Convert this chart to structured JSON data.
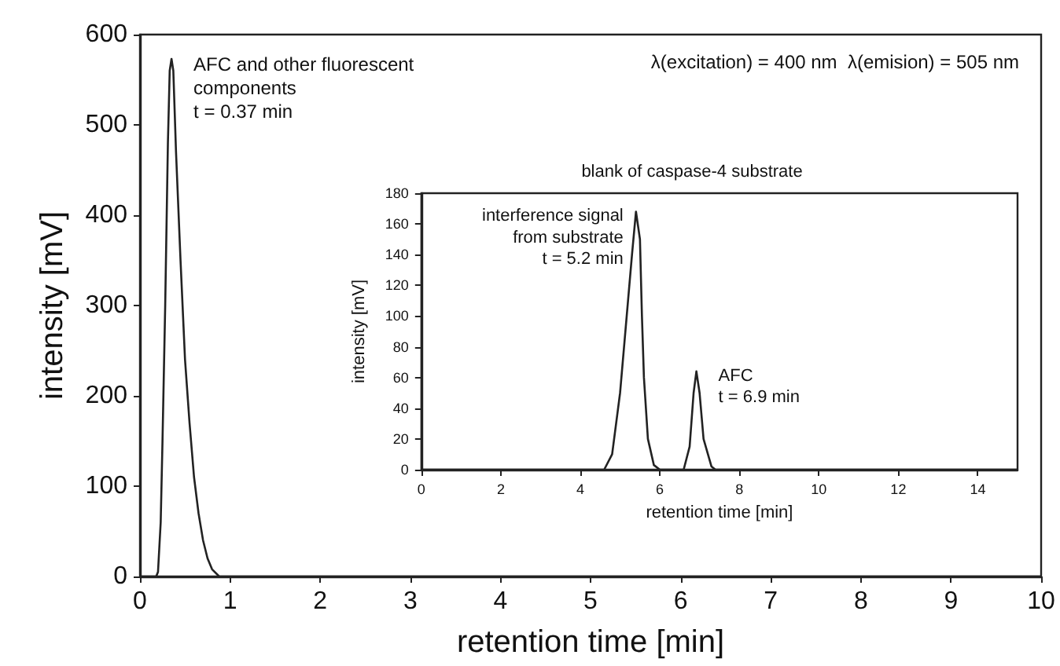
{
  "chart_data": [
    {
      "type": "line",
      "xlabel": "retention time [min]",
      "ylabel": "intensity [mV]",
      "xlim": [
        0,
        10
      ],
      "ylim": [
        0,
        600
      ],
      "xticks": [
        0,
        1,
        2,
        3,
        4,
        5,
        6,
        7,
        8,
        9,
        10
      ],
      "yticks": [
        0,
        100,
        200,
        300,
        400,
        500,
        600
      ],
      "grid": false,
      "marker": "none",
      "line_style": "solid",
      "series": [
        {
          "color": "#222222",
          "x": [
            0,
            0.18,
            0.2,
            0.23,
            0.25,
            0.28,
            0.31,
            0.33,
            0.35,
            0.37,
            0.4,
            0.45,
            0.5,
            0.55,
            0.6,
            0.65,
            0.7,
            0.75,
            0.8,
            0.88,
            10
          ],
          "values": [
            0,
            0,
            5,
            60,
            150,
            300,
            480,
            560,
            573,
            560,
            470,
            350,
            240,
            170,
            110,
            70,
            40,
            20,
            8,
            0,
            0
          ]
        }
      ],
      "annotations": [
        {
          "text": "AFC and other fluorescent\ncomponents\nt = 0.37 min",
          "x": 0.35,
          "y": 573
        },
        "λ(excitation) = 400 nm  λ(emision) = 505 nm"
      ]
    },
    {
      "type": "line",
      "title": "blank of caspase-4 substrate",
      "xlabel": "retention time [min]",
      "ylabel": "intensity [mV]",
      "xlim": [
        0,
        15
      ],
      "ylim": [
        0,
        180
      ],
      "xticks": [
        0,
        2,
        4,
        6,
        8,
        10,
        12,
        14
      ],
      "yticks": [
        0,
        20,
        40,
        60,
        80,
        100,
        120,
        140,
        160,
        180
      ],
      "grid": false,
      "marker": "none",
      "line_style": "solid",
      "series": [
        {
          "color": "#222222",
          "x": [
            0,
            4.6,
            4.8,
            5.0,
            5.2,
            5.3,
            5.4,
            5.5,
            5.55,
            5.6,
            5.7,
            5.85,
            6.0,
            6.6,
            6.75,
            6.85,
            6.92,
            7.0,
            7.1,
            7.3,
            7.4,
            15
          ],
          "values": [
            0,
            0,
            10,
            50,
            110,
            140,
            168,
            150,
            100,
            60,
            20,
            3,
            0,
            0,
            15,
            50,
            64,
            50,
            20,
            2,
            0,
            0
          ]
        }
      ],
      "annotations": [
        {
          "text": "interference signal\nfrom substrate\nt = 5.2 min",
          "x": 5.4,
          "y": 168
        },
        {
          "text": "AFC\nt = 6.9 min",
          "x": 6.92,
          "y": 64
        }
      ]
    }
  ]
}
